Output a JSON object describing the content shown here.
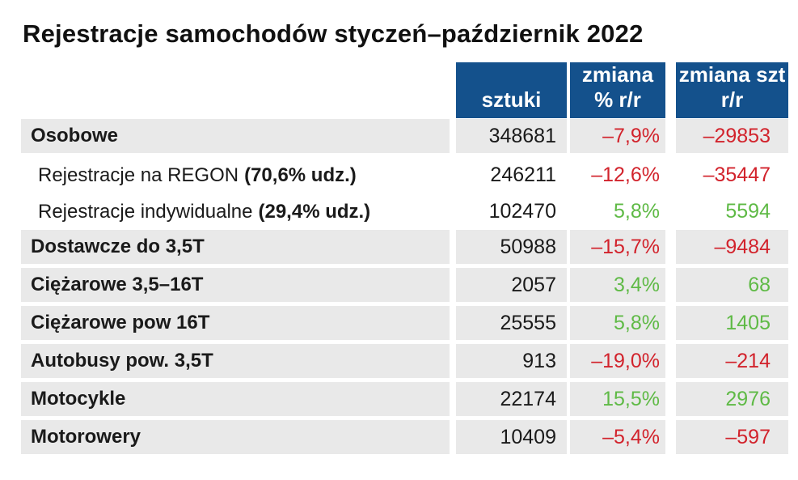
{
  "title": "Rejestracje samochodów styczeń–październik 2022",
  "colors": {
    "header_bg": "#14518C",
    "header_text": "#FFFFFF",
    "row_bg": "#E9E9E9",
    "negative": "#D2232C",
    "positive": "#5FBA46",
    "text": "#1A1A1A"
  },
  "table": {
    "header": {
      "sztuki": "sztuki",
      "pct": "zmiana % r/r",
      "szt": "zmiana szt r/r"
    },
    "rows": [
      {
        "label": "Osobowe",
        "label_suffix": "",
        "bold": true,
        "indent": false,
        "shaded": true,
        "sztuki": "348681",
        "zmiana_pct": "–7,9%",
        "zmiana_szt": "–29853",
        "trend": "negative"
      },
      {
        "label": "Rejestracje na REGON",
        "label_suffix": "(70,6% udz.)",
        "bold": false,
        "indent": true,
        "shaded": false,
        "sztuki": "246211",
        "zmiana_pct": "–12,6%",
        "zmiana_szt": "–35447",
        "trend": "negative"
      },
      {
        "label": "Rejestracje indywidualne",
        "label_suffix": "(29,4% udz.)",
        "bold": false,
        "indent": true,
        "shaded": false,
        "sztuki": "102470",
        "zmiana_pct": "5,8%",
        "zmiana_szt": "5594",
        "trend": "positive"
      },
      {
        "label": "Dostawcze do 3,5T",
        "label_suffix": "",
        "bold": true,
        "indent": false,
        "shaded": true,
        "sztuki": "50988",
        "zmiana_pct": "–15,7%",
        "zmiana_szt": "–9484",
        "trend": "negative"
      },
      {
        "label": "Ciężarowe 3,5–16T",
        "label_suffix": "",
        "bold": true,
        "indent": false,
        "shaded": true,
        "sztuki": "2057",
        "zmiana_pct": "3,4%",
        "zmiana_szt": "68",
        "trend": "positive"
      },
      {
        "label": "Ciężarowe pow 16T",
        "label_suffix": "",
        "bold": true,
        "indent": false,
        "shaded": true,
        "sztuki": "25555",
        "zmiana_pct": "5,8%",
        "zmiana_szt": "1405",
        "trend": "positive"
      },
      {
        "label": "Autobusy pow. 3,5T",
        "label_suffix": "",
        "bold": true,
        "indent": false,
        "shaded": true,
        "sztuki": "913",
        "zmiana_pct": "–19,0%",
        "zmiana_szt": "–214",
        "trend": "negative"
      },
      {
        "label": "Motocykle",
        "label_suffix": "",
        "bold": true,
        "indent": false,
        "shaded": true,
        "sztuki": "22174",
        "zmiana_pct": "15,5%",
        "zmiana_szt": "2976",
        "trend": "positive"
      },
      {
        "label": "Motorowery",
        "label_suffix": "",
        "bold": true,
        "indent": false,
        "shaded": true,
        "sztuki": "10409",
        "zmiana_pct": "–5,4%",
        "zmiana_szt": "–597",
        "trend": "negative"
      }
    ]
  },
  "chart_data": {
    "type": "table",
    "title": "Rejestracje samochodów styczeń–październik 2022",
    "columns": [
      "kategoria",
      "sztuki",
      "zmiana % r/r",
      "zmiana szt r/r"
    ],
    "rows": [
      [
        "Osobowe",
        348681,
        -7.9,
        -29853
      ],
      [
        "Rejestracje na REGON (70,6% udz.)",
        246211,
        -12.6,
        -35447
      ],
      [
        "Rejestracje indywidualne (29,4% udz.)",
        102470,
        5.8,
        5594
      ],
      [
        "Dostawcze do 3,5T",
        50988,
        -15.7,
        -9484
      ],
      [
        "Ciężarowe 3,5–16T",
        2057,
        3.4,
        68
      ],
      [
        "Ciężarowe pow 16T",
        25555,
        5.8,
        1405
      ],
      [
        "Autobusy pow. 3,5T",
        913,
        -19.0,
        -214
      ],
      [
        "Motocykle",
        22174,
        15.5,
        2976
      ],
      [
        "Motorowery",
        10409,
        -5.4,
        -597
      ]
    ]
  }
}
